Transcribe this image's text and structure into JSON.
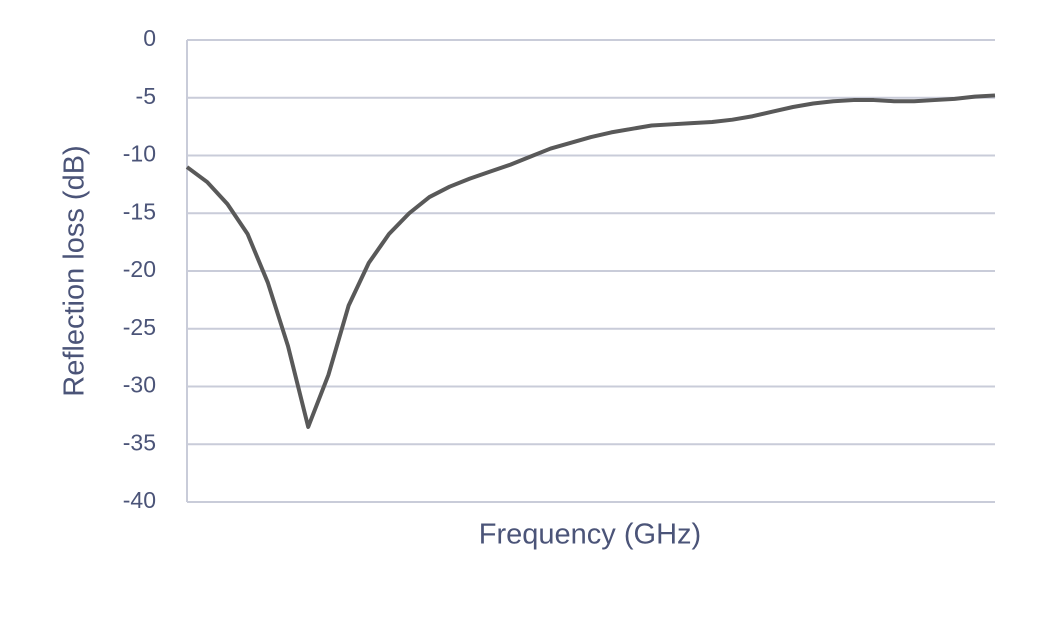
{
  "chart_data": {
    "type": "line",
    "x_label": "Frequency (GHz)",
    "y_label": "Reflection loss (dB)",
    "series": [
      {
        "color": "#595959",
        "values": [
          -11,
          -12.3,
          -14.2,
          -16.8,
          -21,
          -26.5,
          -33.5,
          -29,
          -23,
          -19.3,
          -16.8,
          -15,
          -13.6,
          -12.7,
          -12,
          -11.4,
          -10.8,
          -10.1,
          -9.4,
          -8.9,
          -8.4,
          -8,
          -7.7,
          -7.4,
          -7.3,
          -7.2,
          -7.1,
          -6.9,
          -6.6,
          -6.2,
          -5.8,
          -5.5,
          -5.3,
          -5.2,
          -5.2,
          -5.3,
          -5.3,
          -5.2,
          -5.1,
          -4.9,
          -4.8
        ]
      }
    ],
    "ylim": [
      -40,
      0
    ],
    "yticks": [
      0,
      -5,
      -10,
      -15,
      -20,
      -25,
      -30,
      -35,
      -40
    ],
    "grid": true
  }
}
